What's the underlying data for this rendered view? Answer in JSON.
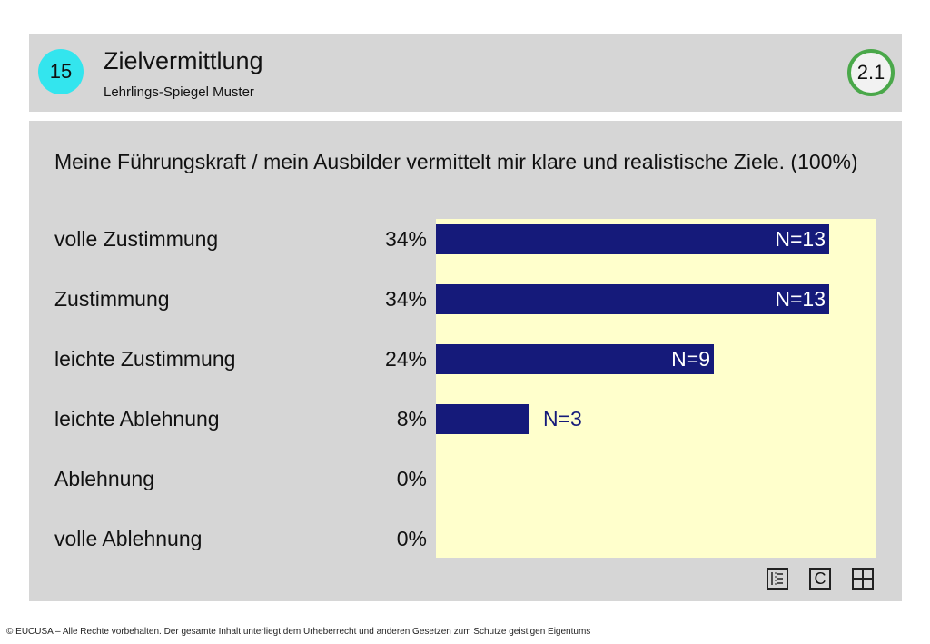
{
  "header": {
    "number": "15",
    "title": "Zielvermittlung",
    "subtitle": "Lehrlings-Spiegel Muster",
    "section": "2.1"
  },
  "question": "Meine Führungskraft / mein Ausbilder vermittelt mir klare und realistische Ziele. (100%)",
  "chart_data": {
    "type": "bar",
    "orientation": "horizontal",
    "categories": [
      "volle Zustimmung",
      "Zustimmung",
      "leichte Zustimmung",
      "leichte Ablehnung",
      "Ablehnung",
      "volle Ablehnung"
    ],
    "percent_labels": [
      "34%",
      "34%",
      "24%",
      "8%",
      "0%",
      "0%"
    ],
    "values": [
      34,
      34,
      24,
      8,
      0,
      0
    ],
    "n_labels": [
      "N=13",
      "N=13",
      "N=9",
      "N=3",
      "",
      ""
    ],
    "counts": [
      13,
      13,
      9,
      3,
      0,
      0
    ],
    "xlim": [
      0,
      38
    ],
    "bar_color": "#151a7a",
    "plot_background": "#ffffcc"
  },
  "footer": "© EUCUSA – Alle Rechte vorbehalten. Der gesamte Inhalt unterliegt dem Urheberrecht und anderen Gesetzen zum Schutze geistigen Eigentums",
  "icons": [
    "list-icon",
    "c-icon",
    "grid-icon"
  ],
  "icon_c_label": "C"
}
